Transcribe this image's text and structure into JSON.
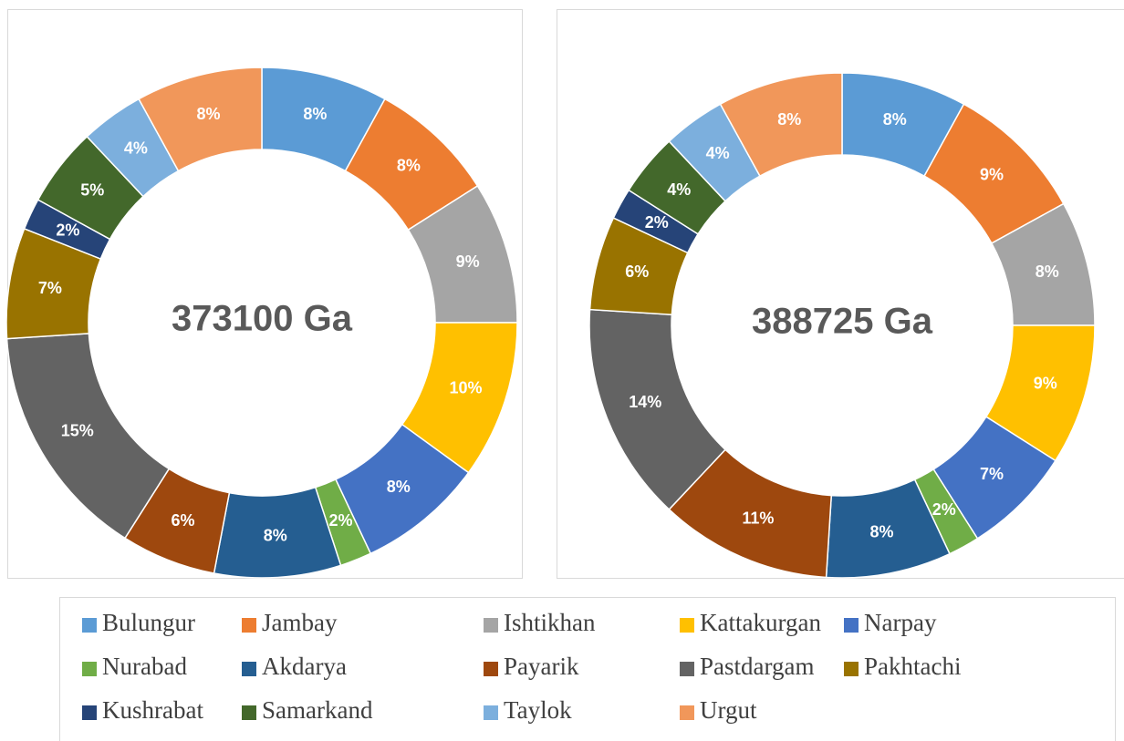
{
  "chart_data": [
    {
      "type": "pie",
      "center_label": "373100 Ga",
      "categories": [
        "Bulungur",
        "Jambay",
        "Ishtikhan",
        "Kattakurgan",
        "Narpay",
        "Nurabad",
        "Akdarya",
        "Payarik",
        "Pastdargam",
        "Pakhtachi",
        "Kushrabat",
        "Samarkand",
        "Taylok",
        "Urgut"
      ],
      "values": [
        8,
        8,
        9,
        10,
        8,
        2,
        8,
        6,
        15,
        7,
        2,
        5,
        4,
        8
      ],
      "value_labels": [
        "8%",
        "8%",
        "9%",
        "10%",
        "8%",
        "2%",
        "8%",
        "6%",
        "15%",
        "7%",
        "2%",
        "5%",
        "4%",
        "8%"
      ],
      "colors": [
        "#5b9bd5",
        "#ed7d31",
        "#a5a5a5",
        "#ffc000",
        "#4472c4",
        "#70ad47",
        "#255e91",
        "#9e480e",
        "#636363",
        "#997300",
        "#264478",
        "#43682b",
        "#7cafdd",
        "#f1975a"
      ],
      "legend": "bottom"
    },
    {
      "type": "pie",
      "center_label": "388725 Ga",
      "categories": [
        "Bulungur",
        "Jambay",
        "Ishtikhan",
        "Kattakurgan",
        "Narpay",
        "Nurabad",
        "Akdarya",
        "Payarik",
        "Pastdargam",
        "Pakhtachi",
        "Kushrabat",
        "Samarkand",
        "Taylok",
        "Urgut"
      ],
      "values": [
        8,
        9,
        8,
        9,
        7,
        2,
        8,
        11,
        14,
        6,
        2,
        4,
        4,
        8
      ],
      "value_labels": [
        "8%",
        "9%",
        "8%",
        "9%",
        "7%",
        "2%",
        "8%",
        "11%",
        "14%",
        "6%",
        "2%",
        "4%",
        "4%",
        "8%"
      ],
      "colors": [
        "#5b9bd5",
        "#ed7d31",
        "#a5a5a5",
        "#ffc000",
        "#4472c4",
        "#70ad47",
        "#255e91",
        "#9e480e",
        "#636363",
        "#997300",
        "#264478",
        "#43682b",
        "#7cafdd",
        "#f1975a"
      ],
      "legend": "bottom"
    }
  ]
}
